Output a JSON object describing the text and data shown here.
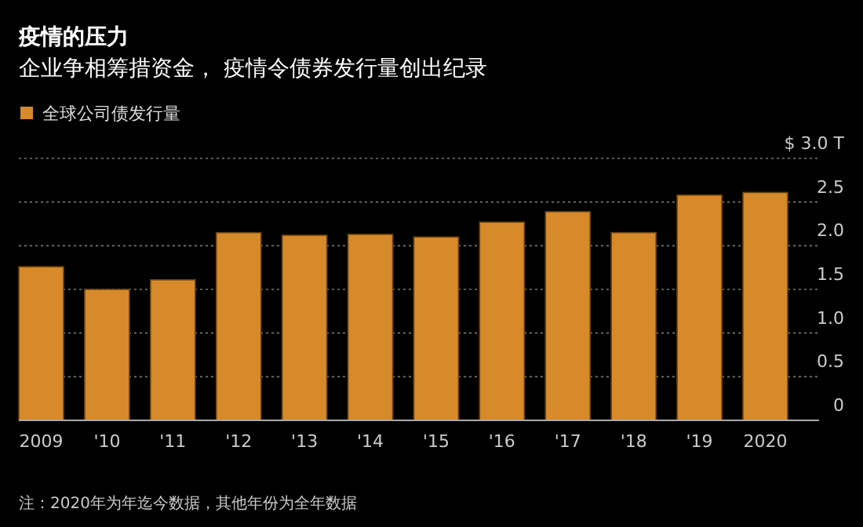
{
  "chart_data": {
    "type": "bar",
    "title": "疫情的压力",
    "subtitle": "企业争相筹措资金， 疫情令债券发行量创出纪录",
    "categories": [
      "2009",
      "'10",
      "'11",
      "'12",
      "'13",
      "'14",
      "'15",
      "'16",
      "'17",
      "'18",
      "'19",
      "2020"
    ],
    "series": [
      {
        "name": "全球公司债发行量",
        "color": "#d68a2a",
        "values": [
          1.76,
          1.5,
          1.61,
          2.15,
          2.12,
          2.13,
          2.1,
          2.27,
          2.39,
          2.15,
          2.58,
          2.61
        ]
      }
    ],
    "ylim": [
      0,
      3.0
    ],
    "yticks": [
      0,
      0.5,
      {
        "value": 1,
        "label": "1.0"
      },
      1.5,
      {
        "value": 2,
        "label": "2.0"
      },
      2.5,
      {
        "value": 3,
        "label": "$ 3.0  T"
      }
    ],
    "grid": "y",
    "legend": "top left",
    "annotations": [
      "注：2020年为年迄今数据，其他年份为全年数据"
    ]
  }
}
